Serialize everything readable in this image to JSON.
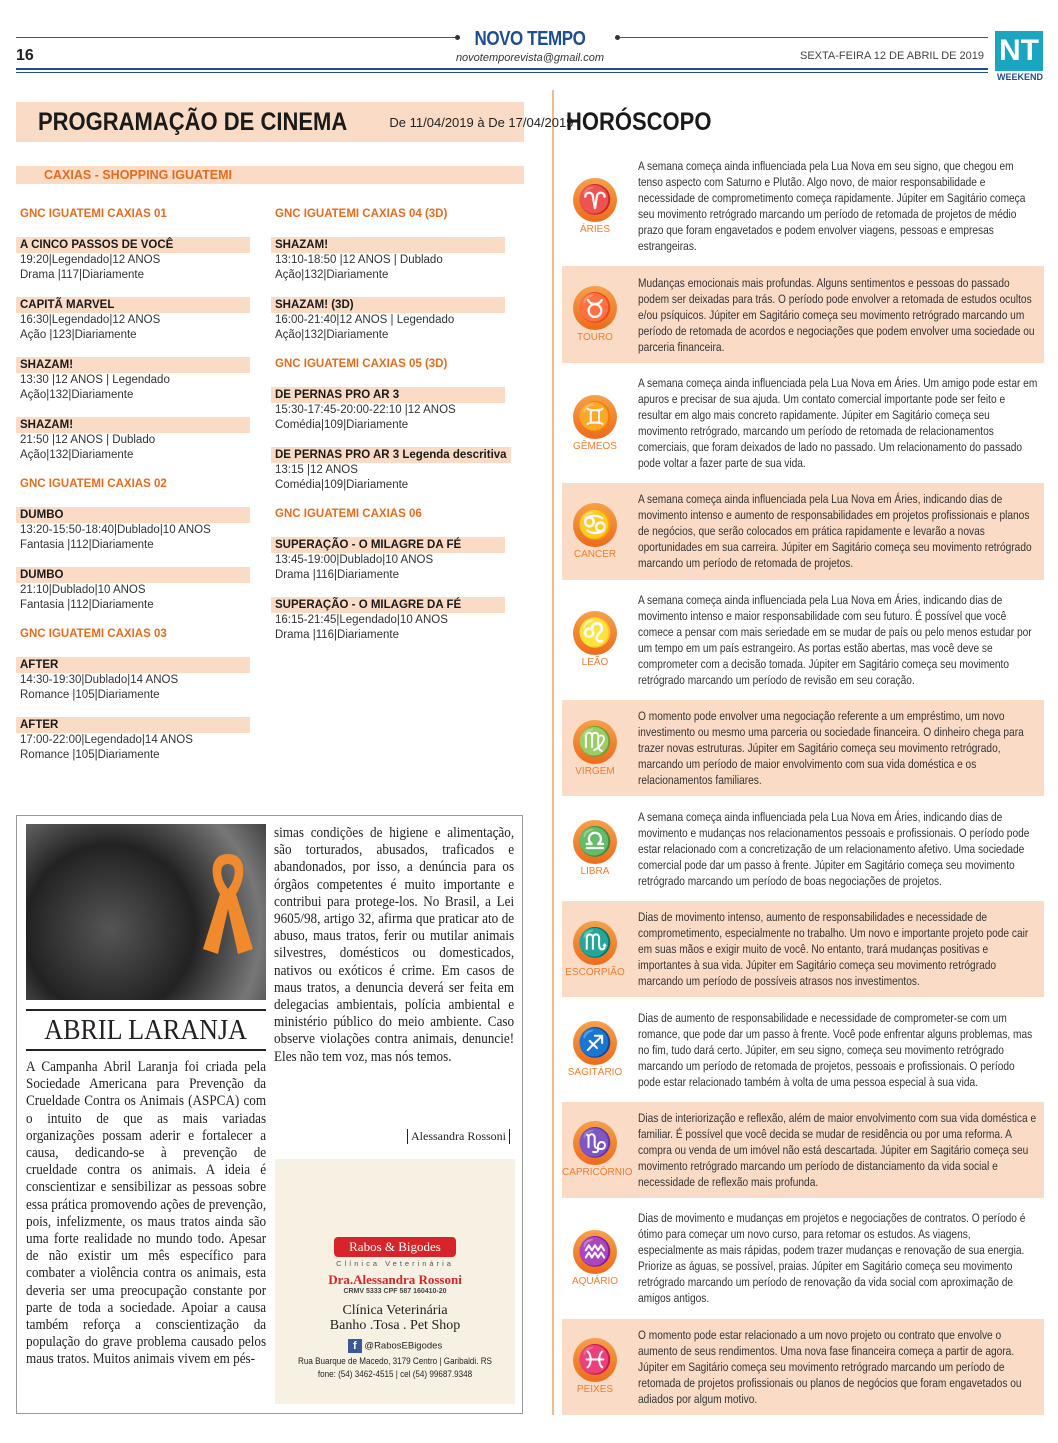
{
  "header": {
    "brand": "NOVO TEMPO",
    "email": "novotemporevista@gmail.com",
    "page_number": "16",
    "date": "SEXTA-FEIRA 12 DE ABRIL DE 2019",
    "logo_text": "NT",
    "logo_sub": "WEEKEND"
  },
  "cinema": {
    "title": "PROGRAMAÇÃO DE CINEMA",
    "period": "De 11/04/2019 à De 17/04/2019",
    "location": "CAXIAS - SHOPPING IGUATEMI",
    "columns": [
      [
        {
          "theater": "GNC IGUATEMI CAXIAS 01"
        },
        {
          "title": "A CINCO PASSOS DE VOCÊ",
          "line1": "19:20|Legendado|12 ANOS",
          "line2": "Drama |117|Diariamente"
        },
        {
          "title": "CAPITÃ MARVEL",
          "line1": "16:30|Legendado|12 ANOS",
          "line2": "Ação |123|Diariamente"
        },
        {
          "title": "SHAZAM!",
          "line1": "13:30 |12 ANOS | Legendado",
          "line2": "Ação|132|Diariamente"
        },
        {
          "title": "SHAZAM!",
          "line1": "21:50 |12 ANOS | Dublado",
          "line2": "Ação|132|Diariamente"
        },
        {
          "theater": "GNC IGUATEMI CAXIAS 02"
        },
        {
          "title": "DUMBO",
          "line1": "13:20-15:50-18:40|Dublado|10 ANOS",
          "line2": "Fantasia |112|Diariamente"
        },
        {
          "title": "DUMBO",
          "line1": "21:10|Dublado|10 ANOS",
          "line2": "Fantasia |112|Diariamente"
        },
        {
          "theater": "GNC IGUATEMI CAXIAS 03"
        },
        {
          "title": "AFTER",
          "line1": "14:30-19:30|Dublado|14 ANOS",
          "line2": "Romance |105|Diariamente"
        },
        {
          "title": "AFTER",
          "line1": "17:00-22:00|Legendado|14 ANOS",
          "line2": "Romance |105|Diariamente"
        }
      ],
      [
        {
          "theater": "GNC IGUATEMI CAXIAS 04 (3D)"
        },
        {
          "title": "SHAZAM!",
          "line1": "13:10-18:50 |12 ANOS | Dublado",
          "line2": "Ação|132|Diariamente"
        },
        {
          "title": "SHAZAM! (3D)",
          "line1": "16:00-21:40|12 ANOS | Legendado",
          "line2": "Ação|132|Diariamente"
        },
        {
          "theater": "GNC IGUATEMI CAXIAS 05 (3D)"
        },
        {
          "title": "DE PERNAS PRO AR 3",
          "line1": "15:30-17:45-20:00-22:10 |12 ANOS",
          "line2": "Comédia|109|Diariamente"
        },
        {
          "title": "DE PERNAS PRO AR 3 Legenda descritiva",
          "line1": "13:15 |12 ANOS",
          "line2": "Comédia|109|Diariamente"
        },
        {
          "theater": "GNC IGUATEMI CAXIAS 06"
        },
        {
          "title": "SUPERAÇÃO - O MILAGRE DA FÉ",
          "line1": "13:45-19:00|Dublado|10 ANOS",
          "line2": "Drama |116|Diariamente"
        },
        {
          "title": "SUPERAÇÃO - O MILAGRE DA FÉ",
          "line1": "16:15-21:45|Legendado|10 ANOS",
          "line2": "Drama |116|Diariamente"
        }
      ]
    ]
  },
  "article": {
    "headline": "ABRIL LARANJA",
    "body_part1": "A Campanha Abril Laranja foi criada pela Sociedade Americana para Prevenção da Crueldade Contra os Animais (ASPCA) com o intuito de que as mais variadas organizações possam aderir e fortalecer a causa, dedicando-se à prevenção de crueldade contra os animais. A ideia é conscientizar e sensibilizar as pessoas sobre essa prática promovendo ações de prevenção, pois, infelizmente, os maus tratos ainda são uma forte realidade no mundo todo. Apesar de não existir um mês específico para combater a violência contra os animais, esta deveria ser uma preocupação constante por parte de toda a sociedade. Apoiar a causa também reforça a conscientização da população do grave problema causado pelos maus tratos. Muitos animais vivem em pés-",
    "body_part2": "simas condições de higiene e alimentação, são torturados, abusados, traficados e abandonados, por isso, a denúncia para os órgãos competentes é muito importante e contribui para protege-los. No Brasil, a Lei 9605/98, artigo 32, afirma que praticar ato de abuso, maus tratos, ferir ou mutilar animais silvestres, domésticos ou domesticados, nativos ou exóticos é crime. Em casos de maus tratos, a denuncia deverá ser feita em delegacias ambientais, polícia ambiental e ministério público do meio ambiente. Caso observe violações contra animais, denuncie! Eles não tem voz, mas nós temos.",
    "author": "Alessandra Rossoni"
  },
  "ad": {
    "brand": "Rabos & Bigodes",
    "brand_sub": "Clínica Veterinária",
    "doctor": "Dra.Alessandra Rossoni",
    "registration": "CRMV 5333 CPF 587 160410-20",
    "service1": "Clínica Veterinária",
    "service2": "Banho .Tosa . Pet Shop",
    "facebook": "@RabosEBigodes",
    "address": "Rua Buarque de Macedo, 3179  Centro |  Garibaldi. RS",
    "phones": "fone: (54) 3462-4515  |  cel (54) 99687.9348",
    "accent": "#d7242a"
  },
  "horoscope": {
    "title": "HORÓSCOPO",
    "accent": "#ef7c2e",
    "signs": [
      {
        "name": "ÁRIES",
        "glyph": "♈",
        "text": "A semana começa ainda influenciada pela Lua Nova em seu signo, que chegou em tenso aspecto com Saturno e Plutão. Algo novo, de maior responsabilidade e necessidade de comprometimento começa rapidamente. Júpiter em Sagitário começa seu movimento retrógrado marcando um período de retomada de projetos de médio prazo que foram engavetados e podem envolver viagens, pessoas e empresas estrangeiras."
      },
      {
        "name": "TOURO",
        "glyph": "♉",
        "text": "Mudanças emocionais mais profundas. Alguns sentimentos e pessoas do passado podem ser deixadas para trás. O período pode envolver a retomada de estudos ocultos e/ou psíquicos. Júpiter em Sagitário começa seu movimento retrógrado marcando um período de retomada de acordos e negociações que podem envolver uma sociedade ou parceria financeira."
      },
      {
        "name": "GÊMEOS",
        "glyph": "♊",
        "text": "A semana começa ainda influenciada pela Lua Nova em Áries. Um amigo pode estar em apuros e precisar de sua ajuda. Um contato comercial importante pode ser feito e resultar em algo mais concreto rapidamente. Júpiter em Sagitário começa seu movimento retrógrado, marcando um período de retomada de relacionamentos comerciais, que foram deixados de lado no passado. Um relacionamento do passado pode voltar a fazer parte de sua vida."
      },
      {
        "name": "CANCER",
        "glyph": "♋",
        "text": "A semana começa ainda influenciada pela Lua Nova em Áries, indicando dias de movimento intenso e aumento de responsabilidades em projetos profissionais e planos de negócios, que serão colocados em prática rapidamente e levarão a novas oportunidades em sua carreira. Júpiter em Sagitário começa seu movimento retrógrado marcando um período de retomada de projetos."
      },
      {
        "name": "LEÃO",
        "glyph": "♌",
        "text": "A semana começa ainda influenciada pela Lua Nova em Áries, indicando dias de movimento intenso e maior responsabilidade com seu futuro. É possível que você comece a pensar com mais seriedade em se mudar de país ou pelo menos estudar por um tempo em um país estrangeiro. As portas estão abertas, mas você deve se comprometer com a decisão tomada. Júpiter em Sagitário começa seu movimento retrógrado marcando um período de revisão em seu coração."
      },
      {
        "name": "VIRGEM",
        "glyph": "♍",
        "text": "O momento pode envolver uma negociação referente a um empréstimo, um novo investimento ou mesmo uma parceria ou sociedade financeira. O dinheiro chega para trazer novas estruturas. Júpiter em Sagitário começa seu movimento retrógrado, marcando um período de maior envolvimento com sua vida doméstica e os relacionamentos familiares."
      },
      {
        "name": "LIBRA",
        "glyph": "♎",
        "text": "A semana começa ainda influenciada pela Lua Nova em Áries, indicando dias de movimento e mudanças nos relacionamentos pessoais e profissionais. O período pode estar relacionado com a concretização de um relacionamento afetivo. Uma sociedade comercial pode dar um passo à frente. Júpiter em Sagitário começa seu movimento retrógrado marcando um período de boas negociações de projetos."
      },
      {
        "name": "ESCORPIÃO",
        "glyph": "♏",
        "text": "Dias de movimento intenso, aumento de responsabilidades e necessidade de comprometimento, especialmente no trabalho. Um novo e importante projeto pode cair em suas mãos e exigir muito de você. No entanto, trará mudanças positivas e importantes à sua vida. Júpiter em Sagitário começa seu movimento retrógrado marcando um período de possíveis atrasos nos investimentos."
      },
      {
        "name": "SAGITÁRIO",
        "glyph": "♐",
        "text": "Dias de aumento de responsabilidade e necessidade de comprometer-se com um romance, que pode dar um passo à frente. Você pode enfrentar alguns problemas, mas no fim, tudo dará certo. Júpiter, em seu signo, começa seu movimento retrógrado marcando um período de retomada de projetos, pessoais e profissionais. O período pode estar relacionado também à volta de uma pessoa especial à sua vida."
      },
      {
        "name": "CAPRICÓRNIO",
        "glyph": "♑",
        "text": "Dias de interiorização e reflexão, além de maior envolvimento com sua vida doméstica e familiar. É possível que você decida se mudar de residência ou por uma reforma. A compra ou venda de um imóvel não está descartada. Júpiter em Sagitário começa seu movimento retrógrado marcando um período de distanciamento da vida social e necessidade de reflexão mais profunda."
      },
      {
        "name": "AQUÁRIO",
        "glyph": "♒",
        "text": "Dias de movimento e mudanças em projetos e negociações de contratos. O período é ótimo para começar um novo curso, para retomar os estudos. As viagens, especialmente as mais rápidas, podem trazer mudanças e renovação de sua energia. Priorize as águas, se possível, praias. Júpiter em Sagitário começa seu movimento retrógrado marcando um período de renovação da vida social com aproximação de amigos antigos."
      },
      {
        "name": "PEIXES",
        "glyph": "♓",
        "text": "O momento pode estar relacionado a um novo projeto ou contrato que envolve o aumento de seus rendimentos. Uma nova fase financeira começa a partir de agora. Júpiter em Sagitário começa seu movimento retrógrado marcando um período de retomada de projetos profissionais ou planos de negócios que foram engavetados ou adiados por algum motivo."
      }
    ]
  }
}
